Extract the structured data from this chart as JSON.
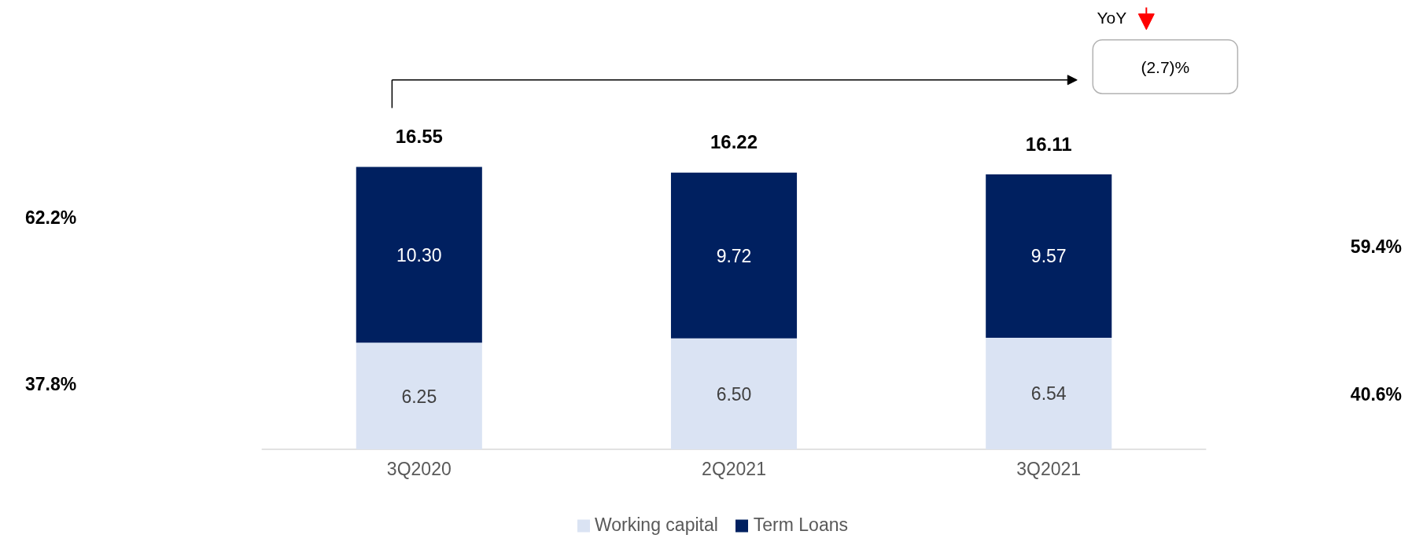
{
  "chart_data": {
    "type": "bar",
    "stacked": true,
    "categories": [
      "3Q2020",
      "2Q2021",
      "3Q2021"
    ],
    "series": [
      {
        "name": "Working capital",
        "color": "#dae3f3",
        "values": [
          6.25,
          6.5,
          6.54
        ],
        "value_labels": [
          "6.25",
          "6.50",
          "6.54"
        ]
      },
      {
        "name": "Term Loans",
        "color": "#002060",
        "values": [
          10.3,
          9.72,
          9.57
        ],
        "value_labels": [
          "10.30",
          "9.72",
          "9.57"
        ]
      }
    ],
    "totals": [
      "16.55",
      "16.22",
      "16.11"
    ],
    "annotations": [
      "62.2%",
      "37.8%",
      "59.4%",
      "40.6%",
      "YoY",
      "(2.7)%"
    ],
    "legend": "bottom",
    "grid": false,
    "tick_labels": "x"
  }
}
